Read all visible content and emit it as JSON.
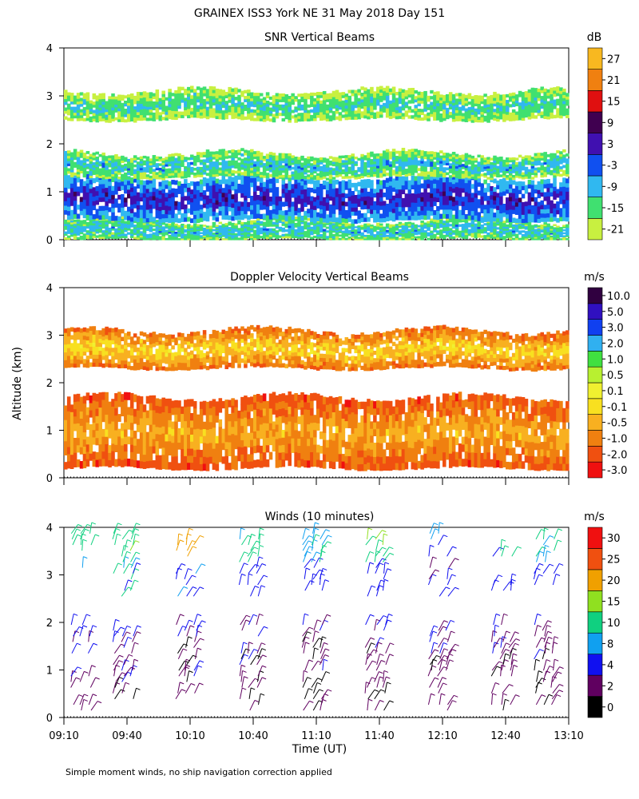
{
  "main_title": "GRAINEX ISS3 York NE  31 May 2018 Day 151",
  "footer_note": "Simple moment winds, no ship navigation correction applied",
  "chart_data": [
    {
      "type": "heatmap",
      "title": "SNR Vertical Beams",
      "ylabel": "",
      "xlim": [
        "09:10",
        "13:10"
      ],
      "ylim": [
        0,
        4
      ],
      "yticks": [
        "0",
        "1",
        "2",
        "3",
        "4"
      ],
      "colorbar": {
        "unit": "dB",
        "ticks": [
          "-21",
          "-15",
          "-9",
          "-3",
          "3",
          "9",
          "15",
          "21",
          "27"
        ],
        "colors": [
          "#c8f040",
          "#40e070",
          "#30b8f0",
          "#1050f0",
          "#4010b0",
          "#400050",
          "#e01010",
          "#f08010",
          "#f8b820"
        ]
      },
      "layers": [
        {
          "bottom": 0.0,
          "top": 0.4,
          "level": "-15 to -9 dB"
        },
        {
          "bottom": 0.4,
          "top": 1.3,
          "level": "-9 to 3 dB"
        },
        {
          "bottom": 1.3,
          "top": 1.8,
          "level": "-15 to -9 dB"
        },
        {
          "bottom": 2.5,
          "top": 3.1,
          "level": "-21 to -9 dB"
        }
      ]
    },
    {
      "type": "heatmap",
      "title": "Doppler Velocity Vertical Beams",
      "ylabel": "Altitude (km)",
      "xlim": [
        "09:10",
        "13:10"
      ],
      "ylim": [
        0,
        4
      ],
      "yticks": [
        "0",
        "1",
        "2",
        "3",
        "4"
      ],
      "colorbar": {
        "unit": "m/s",
        "ticks": [
          "-3.0",
          "-2.0",
          "-1.0",
          "-0.5",
          "-0.1",
          "0.1",
          "0.5",
          "1.0",
          "2.0",
          "3.0",
          "5.0",
          "10.0"
        ],
        "colors": [
          "#f01010",
          "#f05010",
          "#f08010",
          "#f8b020",
          "#f8e020",
          "#f0f030",
          "#b8f030",
          "#40e040",
          "#30b0f0",
          "#1040f0",
          "#3010c0",
          "#300040"
        ]
      },
      "layers": [
        {
          "bottom": 0.2,
          "top": 1.7,
          "level": "-1.0 to -0.1 m/s"
        },
        {
          "bottom": 2.3,
          "top": 3.1,
          "level": "-0.5 to 0.1 m/s"
        }
      ]
    },
    {
      "type": "scatter",
      "title": "Winds (10 minutes)",
      "xlabel": "Time (UT)",
      "xlim": [
        "09:10",
        "13:10"
      ],
      "ylim": [
        0,
        4
      ],
      "xticks": [
        "09:10",
        "09:40",
        "10:10",
        "10:40",
        "11:10",
        "11:40",
        "12:10",
        "12:40",
        "13:10"
      ],
      "yticks": [
        "0",
        "1",
        "2",
        "3",
        "4"
      ],
      "colorbar": {
        "unit": "m/s",
        "ticks": [
          "0",
          "2",
          "4",
          "8",
          "10",
          "15",
          "20",
          "25",
          "30"
        ],
        "colors": [
          "#000000",
          "#600060",
          "#1010f0",
          "#10a0f0",
          "#10d080",
          "#90e020",
          "#f0a000",
          "#f05010",
          "#f01010"
        ]
      },
      "profiles": [
        {
          "time": "09:20",
          "speeds_ms": [
            3,
            4,
            5,
            8,
            12
          ]
        },
        {
          "time": "09:40",
          "speeds_ms": [
            3,
            4,
            5,
            9,
            14
          ]
        },
        {
          "time": "10:10",
          "speeds_ms": [
            2,
            3,
            5,
            8,
            22
          ]
        },
        {
          "time": "10:40",
          "speeds_ms": [
            2,
            3,
            4,
            6,
            11
          ]
        },
        {
          "time": "11:10",
          "speeds_ms": [
            2,
            3,
            4,
            5,
            10
          ]
        },
        {
          "time": "11:40",
          "speeds_ms": [
            2,
            3,
            4,
            6,
            15
          ]
        },
        {
          "time": "12:10",
          "speeds_ms": [
            2,
            3,
            4,
            5,
            8
          ]
        },
        {
          "time": "12:40",
          "speeds_ms": [
            2,
            3,
            4,
            5,
            9
          ]
        },
        {
          "time": "13:00",
          "speeds_ms": [
            2,
            3,
            4,
            6,
            10
          ]
        }
      ]
    }
  ]
}
